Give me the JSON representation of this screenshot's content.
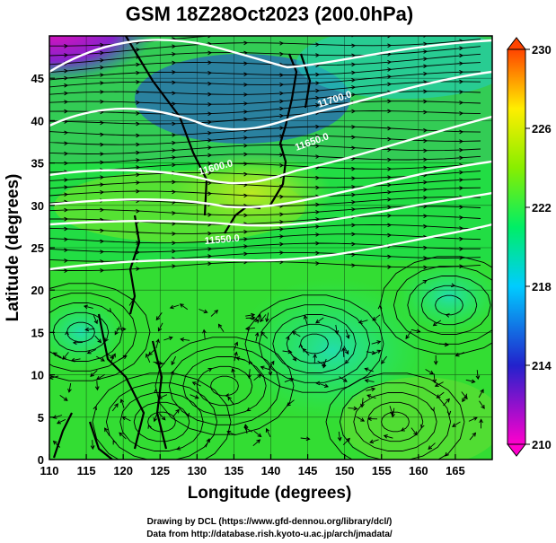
{
  "title": "GSM 18Z28Oct2023 (200.0hPa)",
  "axes": {
    "x_label": "Longitude (degrees)",
    "y_label": "Latitude  (degrees)",
    "x_ticks": [
      "110",
      "115",
      "120",
      "125",
      "130",
      "135",
      "140",
      "145",
      "150",
      "155",
      "160",
      "165"
    ],
    "y_ticks": [
      "0",
      "5",
      "10",
      "15",
      "20",
      "25",
      "30",
      "35",
      "40",
      "45"
    ],
    "x_range": [
      110,
      170
    ],
    "y_range": [
      0,
      50
    ]
  },
  "colorbar": {
    "ticks": [
      "230",
      "226",
      "222",
      "218",
      "214",
      "210"
    ],
    "range": [
      210,
      230
    ],
    "colors": [
      "#ff00cc",
      "#2222cc",
      "#00ccff",
      "#00ff66",
      "#88ee00",
      "#ffee00",
      "#ff4400"
    ]
  },
  "contour_labels": [
    "11700.0",
    "11650.0",
    "11600.0",
    "11550.0"
  ],
  "credits": {
    "line1": "Drawing by DCL (https://www.gfd-dennou.org/library/dcl/)",
    "line2": "Data from http://database.rish.kyoto-u.ac.jp/arch/jmadata/"
  }
}
